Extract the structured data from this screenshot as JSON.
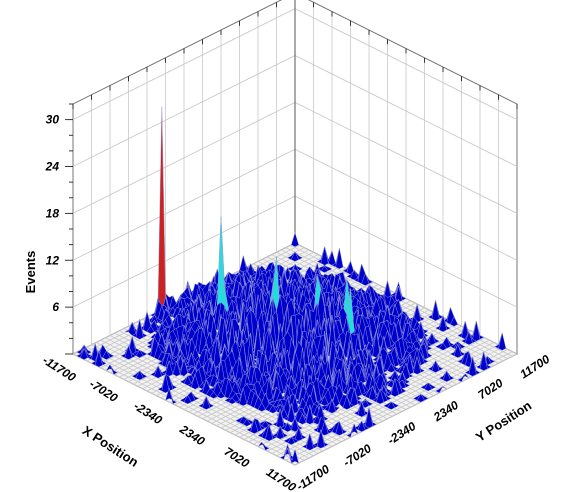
{
  "chart_data": {
    "type": "surface3d",
    "title": "",
    "xlabel": "X Position",
    "ylabel": "Y Position",
    "zlabel": "Events",
    "x_ticks": [
      "-11700",
      "-7020",
      "-2340",
      "2340",
      "7020",
      "11700"
    ],
    "y_ticks": [
      "-11700",
      "-7020",
      "-2340",
      "2340",
      "7020",
      "11700"
    ],
    "z_ticks": [
      "6",
      "12",
      "18",
      "24",
      "30"
    ],
    "xlim": [
      -11700,
      11700
    ],
    "ylim": [
      -11700,
      11700
    ],
    "zlim": [
      0,
      32
    ],
    "grid": true,
    "colors": {
      "surface_low": "#0000cc",
      "surface_mid": "#22dddd",
      "surface_upper": "#22cc22",
      "surface_high_mid": "#eeee22",
      "surface_peak": "#cc2222"
    },
    "peaks": [
      {
        "x": -11700,
        "y": -2340,
        "z": 26
      },
      {
        "x": -7020,
        "y": -700,
        "z": 17
      },
      {
        "x": -3500,
        "y": 1500,
        "z": 11
      },
      {
        "x": -1000,
        "y": 3500,
        "z": 12
      },
      {
        "x": 500,
        "y": 5000,
        "z": 10
      },
      {
        "x": 1500,
        "y": 4200,
        "z": 9
      },
      {
        "x": 3000,
        "y": 6500,
        "z": 7
      },
      {
        "x": -5000,
        "y": 500,
        "z": 8
      },
      {
        "x": 2000,
        "y": 2000,
        "z": 6
      }
    ]
  }
}
